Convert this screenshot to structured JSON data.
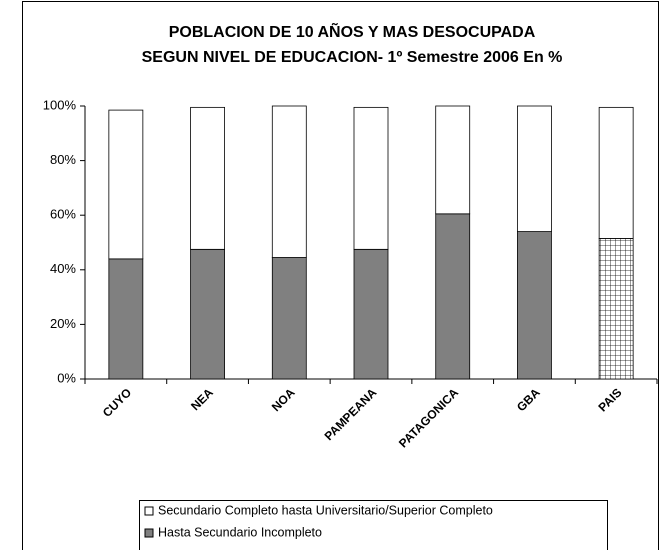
{
  "chart_data": {
    "type": "stacked_bar",
    "title": [
      "POBLACION DE 10 AÑOS Y MAS DESOCUPADA",
      "SEGUN NIVEL DE EDUCACION- 1º Semestre 2006 En %"
    ],
    "categories": [
      "CUYO",
      "NEA",
      "NOA",
      "PAMPEANA",
      "PATAGONICA",
      "GBA",
      "PAIS"
    ],
    "series": [
      {
        "name": "Hasta Secundario Incompleto",
        "color": "#808080",
        "point_fills": [
          "solid",
          "solid",
          "solid",
          "solid",
          "solid",
          "solid",
          "grid"
        ],
        "values": [
          44,
          47.5,
          44.5,
          47.5,
          60.5,
          54,
          51.5
        ]
      },
      {
        "name": "Secundario Completo hasta Universitario/Superior Completo",
        "color": "#ffffff",
        "values": [
          54.5,
          52,
          55.5,
          52,
          39.5,
          46,
          48
        ]
      }
    ],
    "legend_order": [
      1,
      0
    ],
    "ylim": [
      0,
      100
    ],
    "yticks": [
      {
        "value": 0,
        "label": "0%"
      },
      {
        "value": 20,
        "label": "20%"
      },
      {
        "value": 40,
        "label": "40%"
      },
      {
        "value": 60,
        "label": "60%"
      },
      {
        "value": 80,
        "label": "80%"
      },
      {
        "value": 100,
        "label": "100%"
      }
    ],
    "grid": false
  }
}
